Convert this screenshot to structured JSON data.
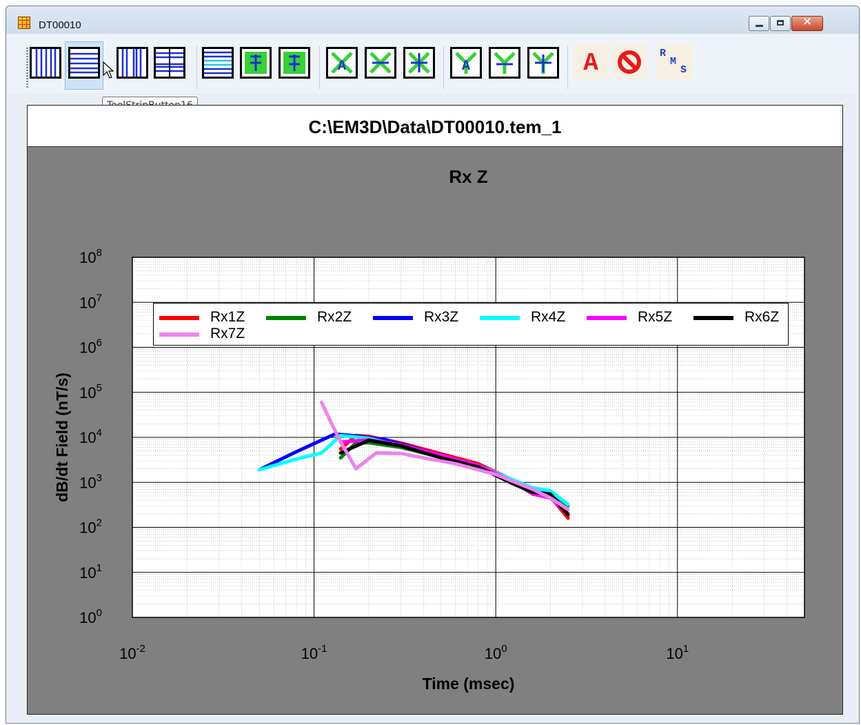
{
  "window": {
    "title": "DT00010",
    "min_glyph": "minimize",
    "max_glyph": "maximize",
    "close_glyph": "✕"
  },
  "toolbar": {
    "tooltip": "ToolStripButton16",
    "buttons": [
      {
        "name": "vertical-grid-fine-icon"
      },
      {
        "name": "horizontal-grid-fine-icon"
      },
      {
        "name": "vertical-grid-coarse-icon"
      },
      {
        "name": "horizontal-grid-coarse-icon"
      },
      {
        "name": "horizontal-band-grid-icon"
      },
      {
        "name": "error-bar-icon"
      },
      {
        "name": "error-bar-offset-icon"
      },
      {
        "name": "x-marker-a-icon"
      },
      {
        "name": "x-marker-icon"
      },
      {
        "name": "asterisk-marker-icon"
      },
      {
        "name": "y-marker-a-icon"
      },
      {
        "name": "y-marker-icon"
      },
      {
        "name": "y-marker-plus-icon"
      },
      {
        "name": "annotate-text-icon"
      },
      {
        "name": "prohibit-icon"
      },
      {
        "name": "rms-icon"
      }
    ],
    "annotate_label": "A",
    "rms_label": "RMS"
  },
  "plot": {
    "file_title": "C:\\EM3D\\Data\\DT00010.tem_1",
    "background": "#808080"
  },
  "chart_data": {
    "type": "line",
    "title": "Rx Z",
    "xlabel": "Time (msec)",
    "ylabel": "dB/dt Field (nT/s)",
    "xscale": "log",
    "yscale": "log",
    "xlim": [
      0.01,
      50
    ],
    "ylim": [
      1,
      100000000
    ],
    "x_ticks": [
      "10-2",
      "10-1",
      "100",
      "101"
    ],
    "y_ticks": [
      "100",
      "101",
      "102",
      "103",
      "104",
      "105",
      "106",
      "107",
      "108"
    ],
    "grid": true,
    "legend_position": "top",
    "series": [
      {
        "name": "Rx1Z",
        "color": "#ff0000",
        "x": [
          0.14,
          0.17,
          0.2,
          0.3,
          0.5,
          0.8,
          1.2,
          1.6,
          2.0,
          2.5
        ],
        "y": [
          5500,
          11000,
          10500,
          7500,
          4300,
          2600,
          1200,
          600,
          480,
          160
        ]
      },
      {
        "name": "Rx2Z",
        "color": "#008000",
        "x": [
          0.14,
          0.17,
          0.2,
          0.3,
          0.5,
          0.8,
          1.2,
          1.6,
          2.0,
          2.5
        ],
        "y": [
          3500,
          7500,
          7600,
          6000,
          3600,
          2300,
          1100,
          620,
          600,
          300
        ]
      },
      {
        "name": "Rx3Z",
        "color": "#0000ff",
        "x": [
          0.05,
          0.08,
          0.13,
          0.16,
          0.25,
          0.5,
          0.8,
          1.2,
          1.6,
          2.0,
          2.5
        ],
        "y": [
          1900,
          4800,
          11800,
          11000,
          8800,
          4000,
          2400,
          1100,
          650,
          560,
          200
        ]
      },
      {
        "name": "Rx4Z",
        "color": "#00ffff",
        "x": [
          0.05,
          0.08,
          0.11,
          0.14,
          0.2,
          0.5,
          0.8,
          1.2,
          1.6,
          2.0,
          2.5
        ],
        "y": [
          1900,
          3300,
          4500,
          11000,
          9500,
          4000,
          2400,
          1200,
          750,
          650,
          320
        ]
      },
      {
        "name": "Rx5Z",
        "color": "#ff00ff",
        "x": [
          0.14,
          0.2,
          0.3,
          0.5,
          0.8,
          1.2,
          1.6,
          2.0,
          2.5
        ],
        "y": [
          7800,
          8800,
          6800,
          4000,
          2400,
          1100,
          550,
          450,
          200
        ]
      },
      {
        "name": "Rx6Z",
        "color": "#000000",
        "x": [
          0.14,
          0.2,
          0.3,
          0.5,
          0.8,
          1.2,
          1.6,
          2.0,
          2.5
        ],
        "y": [
          4500,
          8600,
          6500,
          3500,
          2200,
          1000,
          600,
          550,
          190
        ]
      },
      {
        "name": "Rx7Z",
        "color": "#ee82ee",
        "x": [
          0.11,
          0.125,
          0.14,
          0.17,
          0.22,
          0.3,
          0.4,
          0.6,
          1.0,
          1.6,
          2.0,
          2.5
        ],
        "y": [
          60000,
          20000,
          8000,
          2000,
          4500,
          4400,
          3500,
          2600,
          1500,
          700,
          450,
          250
        ]
      }
    ]
  }
}
